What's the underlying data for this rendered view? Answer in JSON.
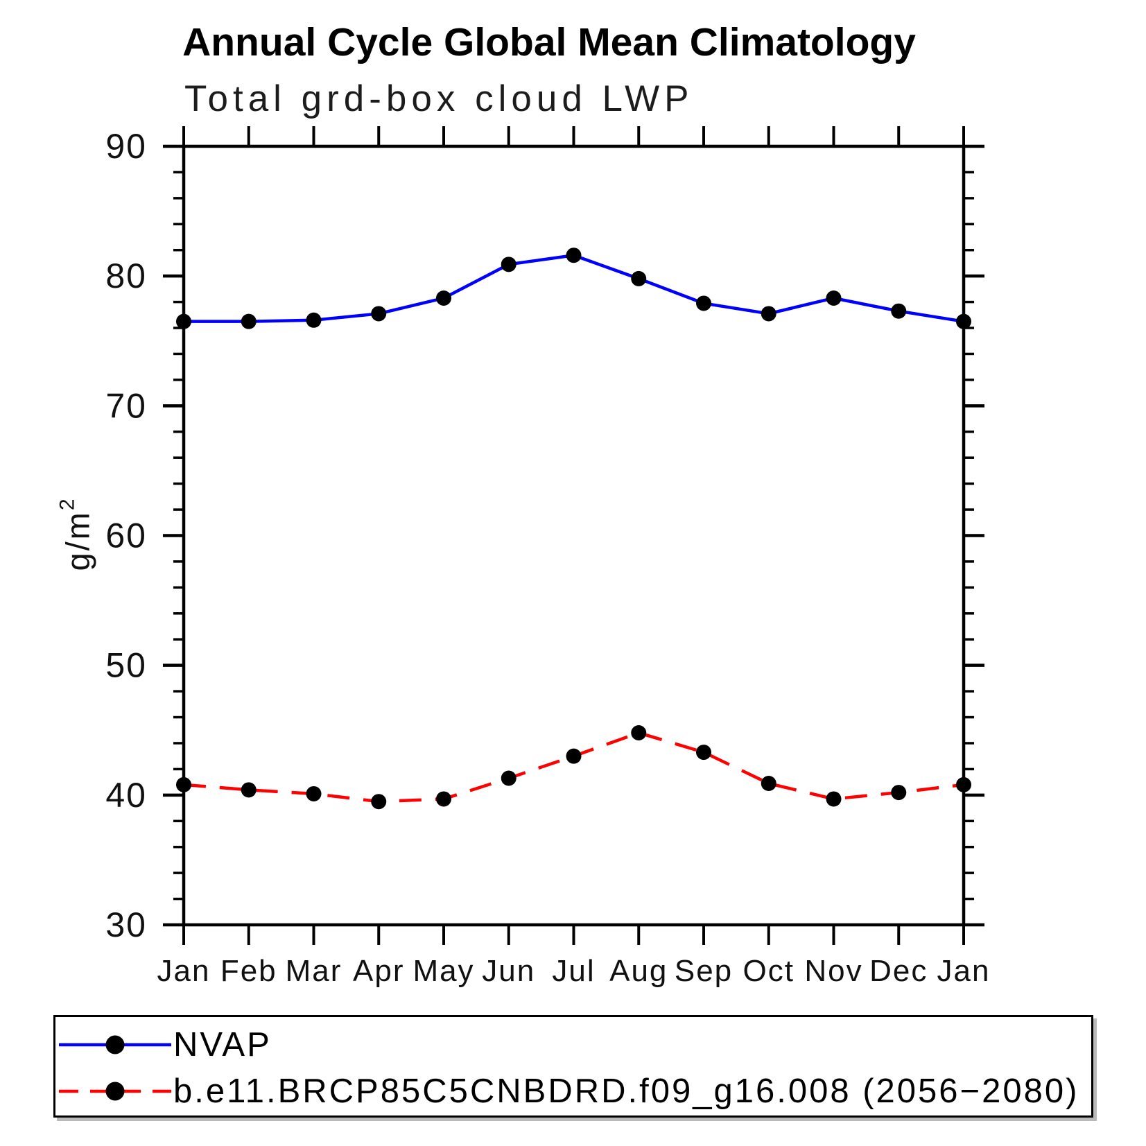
{
  "title": "Annual Cycle Global Mean Climatology",
  "subtitle": "Total grd-box cloud LWP",
  "y_axis_label": {
    "base": "g/m",
    "exponent": "2"
  },
  "legend": {
    "entries": [
      {
        "label": "NVAP",
        "color": "#0000ff",
        "style": "solid"
      },
      {
        "label": "b.e11.BRCP85C5CNBDRD.f09_g16.008 (2056−2080)",
        "color": "#ff0000",
        "style": "dashed"
      }
    ]
  },
  "chart_data": {
    "type": "line",
    "title": "Annual Cycle Global Mean Climatology",
    "subtitle": "Total grd-box cloud LWP",
    "xlabel": "",
    "ylabel": "g/m2",
    "x_categories": [
      "Jan",
      "Feb",
      "Mar",
      "Apr",
      "May",
      "Jun",
      "Jul",
      "Aug",
      "Sep",
      "Oct",
      "Nov",
      "Dec",
      "Jan"
    ],
    "ylim": [
      30,
      90
    ],
    "ytick_major_step": 10,
    "ytick_minor_step": 2,
    "grid": false,
    "legend_position": "bottom-left-box",
    "marker": "filled-circle",
    "marker_color": "#000000",
    "series": [
      {
        "name": "NVAP",
        "color": "#0000ff",
        "style": "solid",
        "values": [
          76.5,
          76.5,
          76.6,
          77.1,
          78.3,
          80.9,
          81.6,
          79.8,
          77.9,
          77.1,
          78.3,
          77.3,
          76.5
        ]
      },
      {
        "name": "b.e11.BRCP85C5CNBDRD.f09_g16.008 (2056−2080)",
        "color": "#ff0000",
        "style": "dashed",
        "values": [
          40.8,
          40.4,
          40.1,
          39.5,
          39.7,
          41.3,
          43.0,
          44.8,
          43.3,
          40.9,
          39.7,
          40.2,
          40.8
        ]
      }
    ]
  }
}
